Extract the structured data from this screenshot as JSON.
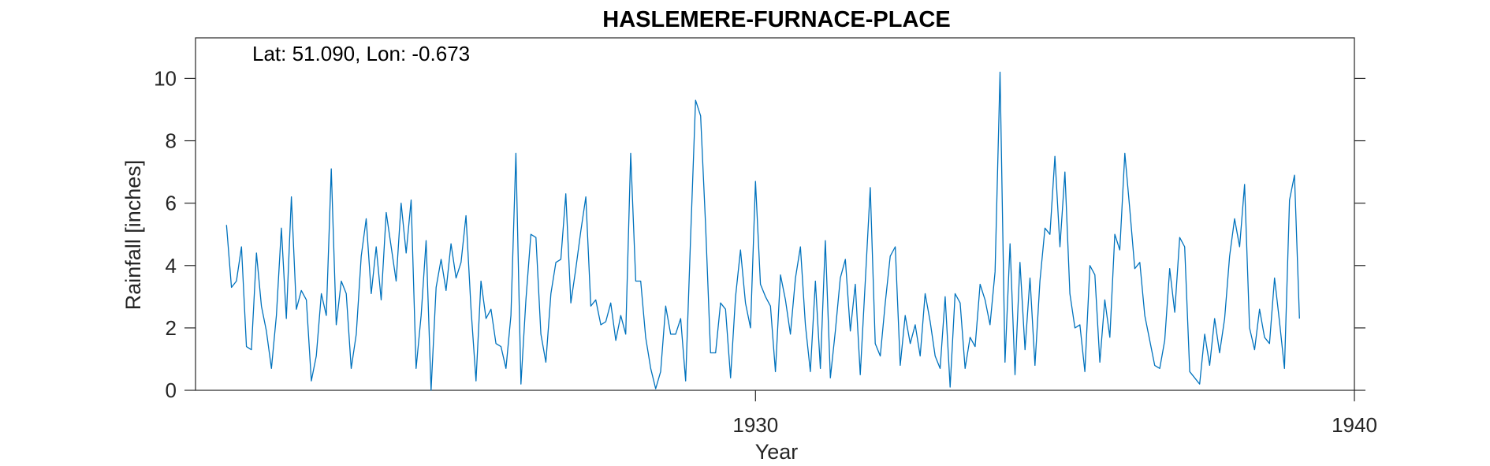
{
  "chart_data": {
    "type": "line",
    "title": "HASLEMERE-FURNACE-PLACE",
    "xlabel": "Year",
    "ylabel": "Rainfall [inches]",
    "annotation": "Lat: 51.090, Lon: -0.673",
    "xlim": [
      1920.65,
      1940.0
    ],
    "ylim": [
      0,
      11.3
    ],
    "xticks": [
      1930,
      1940
    ],
    "xtick_labels": [
      "1930",
      "1940"
    ],
    "yticks": [
      0,
      2,
      4,
      6,
      8,
      10
    ],
    "ytick_labels": [
      "0",
      "2",
      "4",
      "6",
      "8",
      "10"
    ],
    "grid": false,
    "line_color": "#0072BD",
    "series": [
      {
        "x_start": 1921.167,
        "x_step": 0.08333,
        "values": [
          5.3,
          3.3,
          3.5,
          4.6,
          1.4,
          1.3,
          4.4,
          2.7,
          1.9,
          0.7,
          2.4,
          5.2,
          2.3,
          6.2,
          2.6,
          3.2,
          2.9,
          0.3,
          1.1,
          3.1,
          2.4,
          7.1,
          2.1,
          3.5,
          3.1,
          0.7,
          1.8,
          4.3,
          5.5,
          3.1,
          4.6,
          2.9,
          5.7,
          4.6,
          3.5,
          6.0,
          4.4,
          6.1,
          0.7,
          2.4,
          4.8,
          0.0,
          3.3,
          4.2,
          3.2,
          4.7,
          3.6,
          4.1,
          5.6,
          2.6,
          0.3,
          3.5,
          2.3,
          2.6,
          1.5,
          1.4,
          0.7,
          2.4,
          7.6,
          0.2,
          2.9,
          5.0,
          4.9,
          1.8,
          0.9,
          3.1,
          4.1,
          4.2,
          6.3,
          2.8,
          3.9,
          5.1,
          6.2,
          2.7,
          2.9,
          2.1,
          2.2,
          2.8,
          1.6,
          2.4,
          1.8,
          7.6,
          3.5,
          3.5,
          1.7,
          0.7,
          0.05,
          0.6,
          2.7,
          1.8,
          1.8,
          2.3,
          0.3,
          4.9,
          9.3,
          8.8,
          5.3,
          1.2,
          1.2,
          2.8,
          2.6,
          0.4,
          3.0,
          4.5,
          2.8,
          2.0,
          6.7,
          3.4,
          3.0,
          2.7,
          0.6,
          3.7,
          2.9,
          1.8,
          3.6,
          4.6,
          2.1,
          0.6,
          3.5,
          0.7,
          4.8,
          0.4,
          1.9,
          3.6,
          4.2,
          1.9,
          3.4,
          0.5,
          3.5,
          6.5,
          1.5,
          1.1,
          2.8,
          4.3,
          4.6,
          0.8,
          2.4,
          1.5,
          2.1,
          1.1,
          3.1,
          2.2,
          1.1,
          0.7,
          3.0,
          0.1,
          3.1,
          2.8,
          0.7,
          1.7,
          1.4,
          3.4,
          2.9,
          2.1,
          3.8,
          10.2,
          0.9,
          4.7,
          0.5,
          4.1,
          1.3,
          3.6,
          0.8,
          3.5,
          5.2,
          5.0,
          7.5,
          4.6,
          7.0,
          3.1,
          2.0,
          2.1,
          0.6,
          4.0,
          3.7,
          0.9,
          2.9,
          1.7,
          5.0,
          4.5,
          7.6,
          5.8,
          3.9,
          4.1,
          2.4,
          1.6,
          0.8,
          0.7,
          1.6,
          3.9,
          2.5,
          4.9,
          4.6,
          0.6,
          0.4,
          0.2,
          1.8,
          0.8,
          2.3,
          1.2,
          2.3,
          4.3,
          5.5,
          4.6,
          6.6,
          2.0,
          1.3,
          2.6,
          1.7,
          1.5,
          3.6,
          2.2,
          0.7,
          6.1,
          6.9,
          2.3
        ]
      }
    ]
  }
}
